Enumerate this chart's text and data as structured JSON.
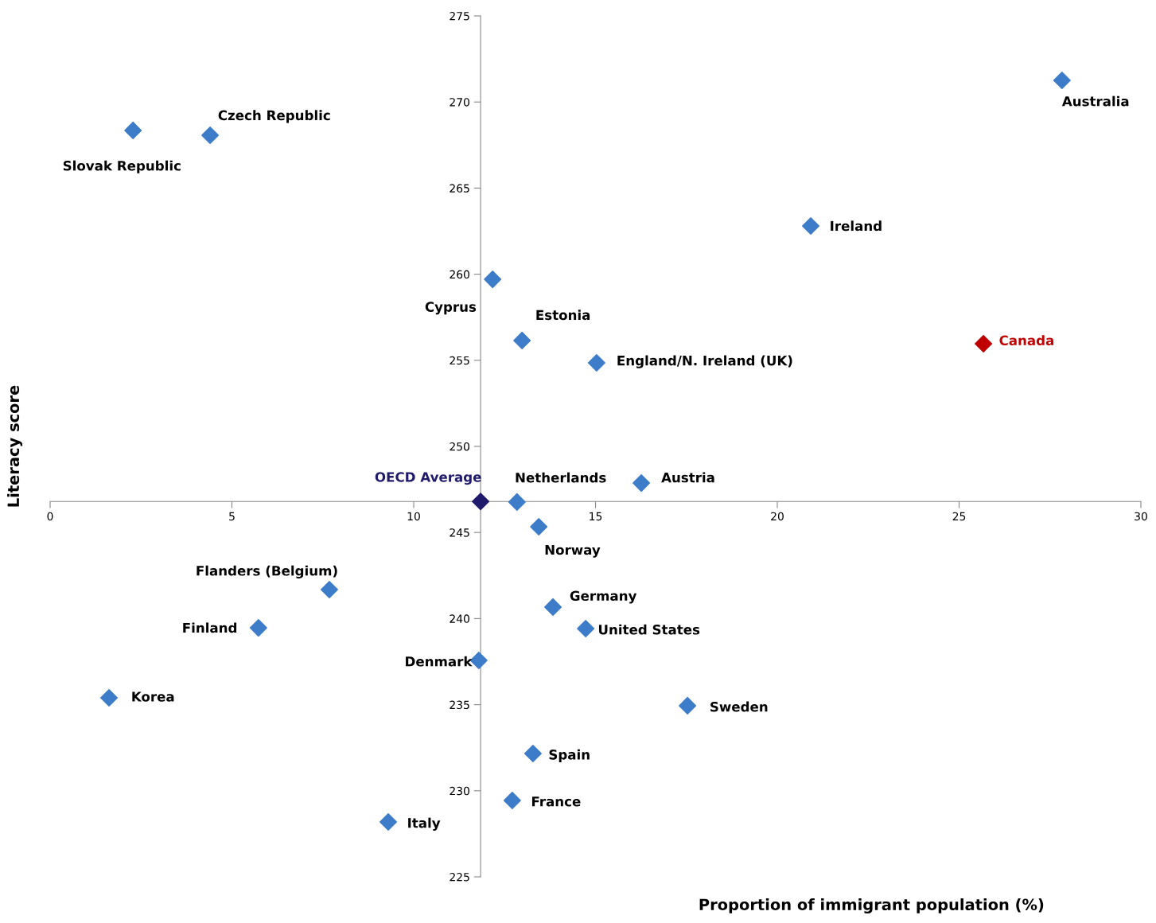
{
  "chart_data": {
    "type": "scatter",
    "xlabel": "Proportion of immigrant population (%)",
    "ylabel": "Literacy score",
    "xlim": [
      0,
      30
    ],
    "ylim": [
      225,
      275
    ],
    "xticks": [
      0,
      5,
      10,
      15,
      20,
      25,
      30
    ],
    "yticks": [
      225,
      230,
      235,
      240,
      245,
      250,
      255,
      260,
      265,
      270,
      275
    ],
    "grid": false,
    "legend": false,
    "marker": "diamond",
    "series": [
      {
        "color": "#3d7cc9",
        "x": [
          2.28,
          4.4,
          27.83,
          20.92,
          12.17,
          12.98,
          15.03,
          12.84,
          16.26,
          13.44,
          7.68,
          5.73,
          13.83,
          14.73,
          11.79,
          1.62,
          17.53,
          13.28,
          12.71,
          9.3
        ],
        "values": [
          268.35,
          268.07,
          271.26,
          262.8,
          259.7,
          256.15,
          254.85,
          246.77,
          247.87,
          245.33,
          241.68,
          239.46,
          240.67,
          239.42,
          237.57,
          235.4,
          234.94,
          232.16,
          229.44,
          228.19
        ]
      },
      {
        "color": "#1f1a6b",
        "x": [
          11.84
        ],
        "values": [
          246.8
        ]
      },
      {
        "color": "#c00000",
        "x": [
          25.67
        ],
        "values": [
          255.96
        ]
      }
    ],
    "annotations": [
      {
        "text": "Slovak Republic",
        "x": 2.28,
        "y": 268.35
      },
      {
        "text": "Czech Republic",
        "x": 4.4,
        "y": 268.07
      },
      {
        "text": "Australia",
        "x": 27.83,
        "y": 271.26
      },
      {
        "text": "Ireland",
        "x": 20.92,
        "y": 262.8
      },
      {
        "text": "Cyprus",
        "x": 12.17,
        "y": 259.7
      },
      {
        "text": "Estonia",
        "x": 12.98,
        "y": 256.15
      },
      {
        "text": "England/N. Ireland (UK)",
        "x": 15.03,
        "y": 254.85
      },
      {
        "text": "Netherlands",
        "x": 12.84,
        "y": 246.77
      },
      {
        "text": "Austria",
        "x": 16.26,
        "y": 247.87
      },
      {
        "text": "Norway",
        "x": 13.44,
        "y": 245.33
      },
      {
        "text": "Flanders (Belgium)",
        "x": 7.68,
        "y": 241.68
      },
      {
        "text": "Finland",
        "x": 5.73,
        "y": 239.46
      },
      {
        "text": "Germany",
        "x": 13.83,
        "y": 240.67
      },
      {
        "text": "United States",
        "x": 14.73,
        "y": 239.42
      },
      {
        "text": "Denmark",
        "x": 11.79,
        "y": 237.57
      },
      {
        "text": "Korea",
        "x": 1.62,
        "y": 235.4
      },
      {
        "text": "Sweden",
        "x": 17.53,
        "y": 234.94
      },
      {
        "text": "Spain",
        "x": 13.28,
        "y": 232.16
      },
      {
        "text": "France",
        "x": 12.71,
        "y": 229.44
      },
      {
        "text": "Italy",
        "x": 9.3,
        "y": 228.19
      },
      {
        "text": "OECD Average",
        "x": 11.84,
        "y": 246.8
      },
      {
        "text": "Canada",
        "x": 25.67,
        "y": 255.96
      }
    ]
  }
}
